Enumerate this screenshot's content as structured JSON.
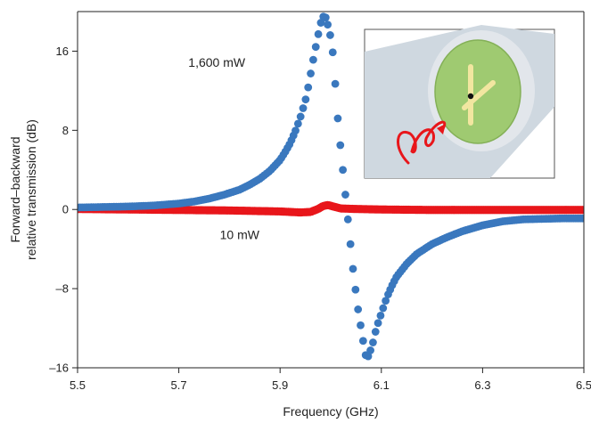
{
  "chart_data": {
    "type": "scatter",
    "title": "",
    "xlabel": "Frequency (GHz)",
    "ylabel_line1": "Forward–backward",
    "ylabel_line2": "relative transmission (dB)",
    "xlim": [
      5.5,
      6.5
    ],
    "ylim": [
      -16,
      20
    ],
    "xticks": [
      5.5,
      5.7,
      5.9,
      6.1,
      6.3,
      6.5
    ],
    "xtick_labels": [
      "5.5",
      "5.7",
      "5.9",
      "6.1",
      "6.3",
      "6.5"
    ],
    "yticks": [
      -16,
      -8,
      0,
      8,
      16
    ],
    "ytick_labels": [
      "–16",
      "–8",
      "0",
      "8",
      "16"
    ],
    "grid": false,
    "colors": {
      "high_power": "#3a78be",
      "low_power": "#e8161b"
    },
    "series": [
      {
        "name": "1,600 mW",
        "style": "dots",
        "x": [
          5.5,
          5.55,
          5.6,
          5.65,
          5.7,
          5.73,
          5.76,
          5.79,
          5.82,
          5.84,
          5.86,
          5.88,
          5.9,
          5.91,
          5.92,
          5.93,
          5.94,
          5.95,
          5.955,
          5.96,
          5.965,
          5.97,
          5.975,
          5.98,
          5.985,
          5.99,
          5.995,
          6.0,
          6.005,
          6.01,
          6.015,
          6.02,
          6.025,
          6.03,
          6.035,
          6.04,
          6.045,
          6.05,
          6.055,
          6.06,
          6.065,
          6.07,
          6.075,
          6.08,
          6.085,
          6.09,
          6.1,
          6.11,
          6.12,
          6.13,
          6.15,
          6.17,
          6.2,
          6.23,
          6.26,
          6.3,
          6.34,
          6.38,
          6.42,
          6.46,
          6.5
        ],
        "y": [
          0.2,
          0.25,
          0.3,
          0.4,
          0.6,
          0.8,
          1.1,
          1.5,
          2.0,
          2.5,
          3.1,
          3.9,
          5.0,
          5.8,
          6.7,
          7.9,
          9.3,
          11.0,
          12.2,
          13.6,
          15.0,
          16.3,
          17.6,
          18.8,
          19.5,
          19.4,
          18.5,
          17.4,
          15.5,
          12.0,
          8.5,
          6.0,
          3.5,
          1.0,
          -1.5,
          -4.0,
          -6.5,
          -8.5,
          -10.5,
          -12.0,
          -13.6,
          -15.0,
          -14.8,
          -14.0,
          -13.2,
          -12.0,
          -10.5,
          -9.0,
          -7.8,
          -6.8,
          -5.5,
          -4.5,
          -3.5,
          -2.8,
          -2.2,
          -1.6,
          -1.2,
          -1.0,
          -0.95,
          -0.9,
          -0.9
        ]
      },
      {
        "name": "10 mW",
        "style": "thick-line",
        "x": [
          5.5,
          5.6,
          5.7,
          5.8,
          5.9,
          5.94,
          5.96,
          5.975,
          5.985,
          5.995,
          6.005,
          6.02,
          6.05,
          6.1,
          6.2,
          6.3,
          6.4,
          6.5
        ],
        "y": [
          0.05,
          0.0,
          -0.05,
          -0.1,
          -0.2,
          -0.3,
          -0.25,
          0.05,
          0.35,
          0.45,
          0.3,
          0.1,
          0.05,
          0.0,
          -0.05,
          -0.05,
          -0.05,
          -0.05
        ]
      }
    ],
    "annotations": [
      {
        "text": "1,600 mW",
        "x": 5.775,
        "y": 14.4
      },
      {
        "text": "10 mW",
        "x": 5.82,
        "y": -3.0
      }
    ]
  }
}
